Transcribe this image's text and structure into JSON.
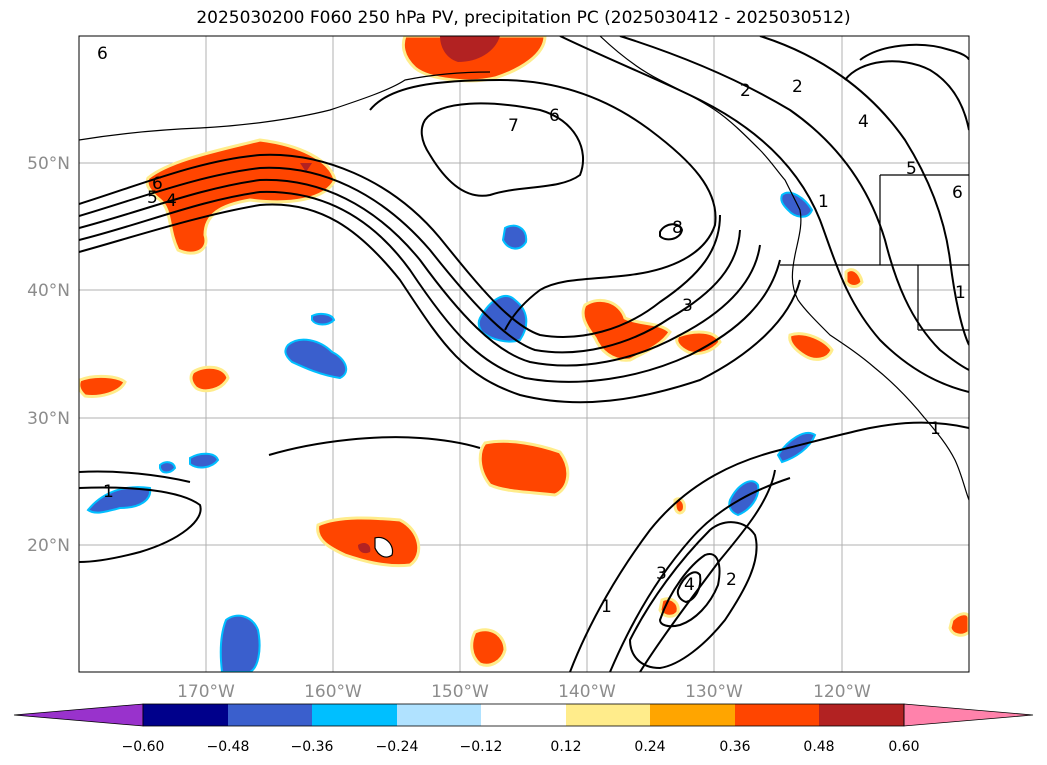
{
  "title": "2025030200 F060 250 hPa PV, precipitation PC (2025030412 - 2025030512)",
  "latitude_labels": [
    "50°N",
    "40°N",
    "30°N",
    "20°N"
  ],
  "longitude_labels": [
    "170°W",
    "160°W",
    "150°W",
    "140°W",
    "130°W",
    "120°W"
  ],
  "pv_contour_labels": [
    "6",
    "6",
    "5",
    "4",
    "7",
    "6",
    "8",
    "3",
    "2",
    "2",
    "4",
    "5",
    "6",
    "1",
    "1",
    "1",
    "1",
    "3",
    "4",
    "2",
    "1"
  ],
  "colorbar": {
    "tick_labels": [
      "−0.60",
      "−0.48",
      "−0.36",
      "−0.24",
      "−0.12",
      "0.12",
      "0.24",
      "0.36",
      "0.48",
      "0.60"
    ],
    "colors": [
      "#9932cc",
      "#00008b",
      "#3a5fcd",
      "#00bfff",
      "#b0e2ff",
      "#ffffff",
      "#ffec8b",
      "#ffa500",
      "#ff4500",
      "#b22222",
      "#ff82ab"
    ]
  },
  "colors": {
    "precip_orange": "#ff4500",
    "precip_darkred": "#b22222",
    "precip_yellow": "#ffec8b",
    "precip_blue": "#3a5fcd",
    "precip_lightblue": "#00bfff",
    "gridline": "#b0b0b0",
    "contour": "#000000"
  }
}
